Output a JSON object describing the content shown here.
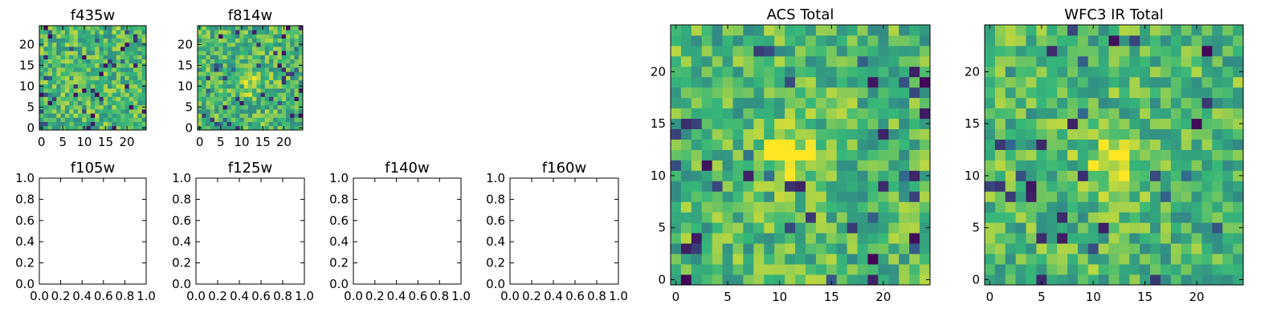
{
  "colormap": [
    "#440154",
    "#31688e",
    "#35b779",
    "#fde725"
  ],
  "chart_data": [
    {
      "id": "f435w",
      "type": "heatmap",
      "title": "f435w",
      "x_ticks": [
        "0",
        "5",
        "10",
        "15",
        "20"
      ],
      "y_ticks": [
        "0",
        "5",
        "10",
        "15",
        "20"
      ],
      "xlim": [
        -0.5,
        24.5
      ],
      "ylim": [
        -0.5,
        24.5
      ],
      "grid_size": [
        25,
        25
      ],
      "origin": "lower",
      "hotspot": null,
      "seed": 11
    },
    {
      "id": "f814w",
      "type": "heatmap",
      "title": "f814w",
      "x_ticks": [
        "0",
        "5",
        "10",
        "15",
        "20"
      ],
      "y_ticks": [
        "0",
        "5",
        "10",
        "15",
        "20"
      ],
      "xlim": [
        -0.5,
        24.5
      ],
      "ylim": [
        -0.5,
        24.5
      ],
      "grid_size": [
        25,
        25
      ],
      "origin": "lower",
      "hotspot": [
        11,
        11
      ],
      "seed": 23
    },
    {
      "id": "f105w",
      "type": "empty",
      "title": "f105w",
      "x_ticks": [
        "0.0",
        "0.2",
        "0.4",
        "0.6",
        "0.8",
        "1.0"
      ],
      "y_ticks": [
        "0.0",
        "0.2",
        "0.4",
        "0.6",
        "0.8",
        "1.0"
      ],
      "xlim": [
        0,
        1
      ],
      "ylim": [
        0,
        1
      ]
    },
    {
      "id": "f125w",
      "type": "empty",
      "title": "f125w",
      "x_ticks": [
        "0.0",
        "0.2",
        "0.4",
        "0.6",
        "0.8",
        "1.0"
      ],
      "y_ticks": [
        "0.0",
        "0.2",
        "0.4",
        "0.6",
        "0.8",
        "1.0"
      ],
      "xlim": [
        0,
        1
      ],
      "ylim": [
        0,
        1
      ]
    },
    {
      "id": "f140w",
      "type": "empty",
      "title": "f140w",
      "x_ticks": [
        "0.0",
        "0.2",
        "0.4",
        "0.6",
        "0.8",
        "1.0"
      ],
      "y_ticks": [
        "0.0",
        "0.2",
        "0.4",
        "0.6",
        "0.8",
        "1.0"
      ],
      "xlim": [
        0,
        1
      ],
      "ylim": [
        0,
        1
      ]
    },
    {
      "id": "f160w",
      "type": "empty",
      "title": "f160w",
      "x_ticks": [
        "0.0",
        "0.2",
        "0.4",
        "0.6",
        "0.8",
        "1.0"
      ],
      "y_ticks": [
        "0.0",
        "0.2",
        "0.4",
        "0.6",
        "0.8",
        "1.0"
      ],
      "xlim": [
        0,
        1
      ],
      "ylim": [
        0,
        1
      ]
    },
    {
      "id": "acs-total",
      "type": "heatmap",
      "title": "ACS Total",
      "x_ticks": [
        "0",
        "5",
        "10",
        "15",
        "20"
      ],
      "y_ticks": [
        "0",
        "5",
        "10",
        "15",
        "20"
      ],
      "xlim": [
        -0.5,
        24.5
      ],
      "ylim": [
        -0.5,
        24.5
      ],
      "grid_size": [
        25,
        25
      ],
      "origin": "lower",
      "hotspot": [
        11,
        12
      ],
      "seed": 37
    },
    {
      "id": "wfc3-ir-total",
      "type": "heatmap",
      "title": "WFC3 IR Total",
      "x_ticks": [
        "0",
        "5",
        "10",
        "15",
        "20"
      ],
      "y_ticks": [
        "0",
        "5",
        "10",
        "15",
        "20"
      ],
      "xlim": [
        -0.5,
        24.5
      ],
      "ylim": [
        -0.5,
        24.5
      ],
      "grid_size": [
        25,
        25
      ],
      "origin": "lower",
      "hotspot": [
        12,
        11
      ],
      "seed": 53
    }
  ]
}
